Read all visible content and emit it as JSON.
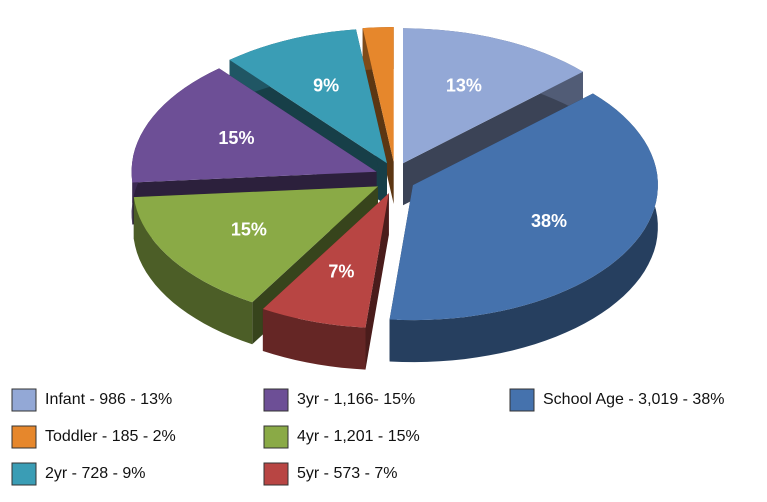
{
  "chart_data": {
    "type": "pie",
    "categories": [
      "Infant - 986 - 13%",
      "Toddler - 185 - 2%",
      "2yr - 728 - 9%",
      "3yr - 1,166- 15%",
      "4yr - 1,201 - 15%",
      "5yr - 573 - 7%",
      "School Age - 3,019 - 38%"
    ],
    "values": [
      13,
      2,
      9,
      15,
      15,
      7,
      38
    ],
    "value_labels": [
      "13%",
      "2%",
      "9%",
      "15%",
      "15%",
      "7%",
      "38%"
    ],
    "colors": [
      "#93a8d6",
      "#e6872c",
      "#3a9db5",
      "#6d4f96",
      "#8aaa46",
      "#b84543",
      "#4572ad"
    ],
    "legend": "bottom"
  }
}
